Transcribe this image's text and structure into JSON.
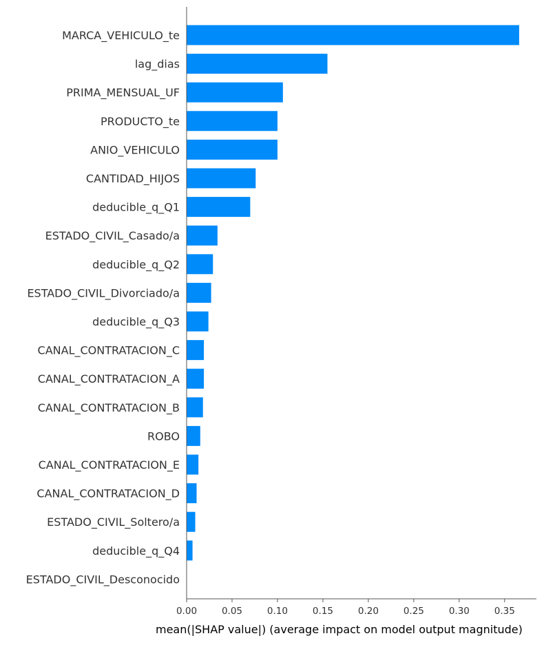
{
  "chart_data": {
    "type": "bar",
    "orientation": "horizontal",
    "xlabel": "mean(|SHAP value|) (average impact on model output magnitude)",
    "xlim": [
      0,
      0.385
    ],
    "xticks": [
      0.0,
      0.05,
      0.1,
      0.15,
      0.2,
      0.25,
      0.3,
      0.35
    ],
    "xtick_labels": [
      "0.00",
      "0.05",
      "0.10",
      "0.15",
      "0.20",
      "0.25",
      "0.30",
      "0.35"
    ],
    "bar_color": "#008bfb",
    "grid": false,
    "categories": [
      "MARCA_VEHICULO_te",
      "lag_dias",
      "PRIMA_MENSUAL_UF",
      "PRODUCTO_te",
      "ANIO_VEHICULO",
      "CANTIDAD_HIJOS",
      "deducible_q_Q1",
      "ESTADO_CIVIL_Casado/a",
      "deducible_q_Q2",
      "ESTADO_CIVIL_Divorciado/a",
      "deducible_q_Q3",
      "CANAL_CONTRATACION_C",
      "CANAL_CONTRATACION_A",
      "CANAL_CONTRATACION_B",
      "ROBO",
      "CANAL_CONTRATACION_E",
      "CANAL_CONTRATACION_D",
      "ESTADO_CIVIL_Soltero/a",
      "deducible_q_Q4",
      "ESTADO_CIVIL_Desconocido"
    ],
    "values": [
      0.366,
      0.155,
      0.106,
      0.1,
      0.1,
      0.076,
      0.07,
      0.034,
      0.029,
      0.027,
      0.024,
      0.019,
      0.019,
      0.018,
      0.015,
      0.013,
      0.011,
      0.0095,
      0.0065,
      0.0
    ]
  }
}
